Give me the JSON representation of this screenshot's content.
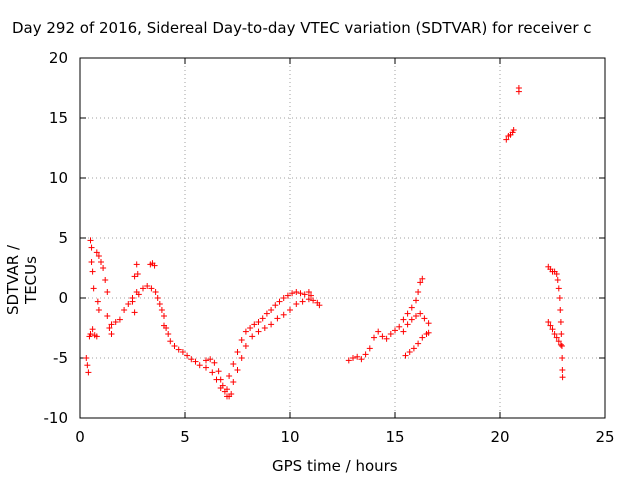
{
  "chart_data": {
    "type": "scatter",
    "title": "Day 292 of 2016, Sidereal Day-to-day VTEC variation (SDTVAR) for receiver c",
    "xlabel": "GPS time / hours",
    "ylabel": "SDTVAR / TECUs",
    "xlim": [
      0,
      25
    ],
    "ylim": [
      -10,
      20
    ],
    "xticks": [
      "0",
      "5",
      "10",
      "15",
      "20",
      "25"
    ],
    "yticks": [
      "20",
      "15",
      "10",
      "5",
      "0",
      "-5",
      "-10"
    ],
    "grid": true,
    "legend": "none",
    "series": [
      {
        "color": "#ff0000",
        "marker": "plus",
        "points": [
          [
            0.3,
            -5.0
          ],
          [
            0.35,
            -5.6
          ],
          [
            0.4,
            -6.2
          ],
          [
            0.45,
            -3.2
          ],
          [
            0.5,
            4.8
          ],
          [
            0.55,
            4.2
          ],
          [
            0.55,
            3.0
          ],
          [
            0.6,
            2.2
          ],
          [
            0.65,
            0.8
          ],
          [
            0.5,
            -3.0
          ],
          [
            0.6,
            -2.6
          ],
          [
            0.7,
            -3.1
          ],
          [
            0.8,
            -3.2
          ],
          [
            0.9,
            -1.0
          ],
          [
            0.85,
            -0.3
          ],
          [
            0.8,
            3.8
          ],
          [
            0.9,
            3.5
          ],
          [
            1.0,
            3.0
          ],
          [
            1.1,
            2.5
          ],
          [
            1.2,
            1.5
          ],
          [
            1.3,
            0.5
          ],
          [
            1.3,
            -1.5
          ],
          [
            1.4,
            -2.5
          ],
          [
            1.5,
            -3.0
          ],
          [
            1.5,
            -2.2
          ],
          [
            1.7,
            -2.0
          ],
          [
            1.9,
            -1.8
          ],
          [
            2.1,
            -1.0
          ],
          [
            2.3,
            -0.5
          ],
          [
            2.5,
            0.0
          ],
          [
            2.6,
            1.8
          ],
          [
            2.7,
            2.8
          ],
          [
            2.75,
            2.0
          ],
          [
            2.5,
            -0.3
          ],
          [
            2.6,
            -1.2
          ],
          [
            2.7,
            0.5
          ],
          [
            2.8,
            0.3
          ],
          [
            3.0,
            0.8
          ],
          [
            3.2,
            1.0
          ],
          [
            3.4,
            0.8
          ],
          [
            3.6,
            0.5
          ],
          [
            3.7,
            0.0
          ],
          [
            3.8,
            -0.5
          ],
          [
            3.9,
            -1.0
          ],
          [
            4.0,
            -1.5
          ],
          [
            4.1,
            -2.5
          ],
          [
            4.0,
            -2.3
          ],
          [
            3.35,
            2.8
          ],
          [
            3.45,
            2.9
          ],
          [
            3.55,
            2.7
          ],
          [
            4.2,
            -3.0
          ],
          [
            4.3,
            -3.6
          ],
          [
            4.5,
            -4.0
          ],
          [
            4.7,
            -4.3
          ],
          [
            4.9,
            -4.5
          ],
          [
            5.1,
            -4.8
          ],
          [
            5.3,
            -5.1
          ],
          [
            5.5,
            -5.3
          ],
          [
            5.7,
            -5.6
          ],
          [
            6.0,
            -5.2
          ],
          [
            6.2,
            -5.1
          ],
          [
            6.4,
            -5.4
          ],
          [
            6.6,
            -6.1
          ],
          [
            6.7,
            -6.8
          ],
          [
            6.8,
            -7.3
          ],
          [
            6.9,
            -7.8
          ],
          [
            7.0,
            -8.2
          ],
          [
            7.1,
            -8.2
          ],
          [
            7.2,
            -8.0
          ],
          [
            6.0,
            -5.8
          ],
          [
            6.3,
            -6.2
          ],
          [
            6.5,
            -6.8
          ],
          [
            6.7,
            -7.5
          ],
          [
            7.1,
            -6.5
          ],
          [
            7.3,
            -5.5
          ],
          [
            7.5,
            -4.5
          ],
          [
            7.7,
            -3.5
          ],
          [
            7.9,
            -2.8
          ],
          [
            8.1,
            -2.5
          ],
          [
            8.3,
            -2.2
          ],
          [
            8.5,
            -2.0
          ],
          [
            8.7,
            -1.7
          ],
          [
            8.9,
            -1.3
          ],
          [
            7.0,
            -7.6
          ],
          [
            7.3,
            -7.0
          ],
          [
            7.5,
            -6.0
          ],
          [
            7.7,
            -5.0
          ],
          [
            7.9,
            -4.0
          ],
          [
            8.2,
            -3.2
          ],
          [
            8.5,
            -2.8
          ],
          [
            8.8,
            -2.5
          ],
          [
            9.1,
            -2.2
          ],
          [
            9.4,
            -1.7
          ],
          [
            9.1,
            -1.0
          ],
          [
            9.3,
            -0.6
          ],
          [
            9.5,
            -0.3
          ],
          [
            9.7,
            0.0
          ],
          [
            9.9,
            0.2
          ],
          [
            10.1,
            0.4
          ],
          [
            10.3,
            0.5
          ],
          [
            10.5,
            0.4
          ],
          [
            10.7,
            0.3
          ],
          [
            10.9,
            0.5
          ],
          [
            11.0,
            0.2
          ],
          [
            11.1,
            -0.2
          ],
          [
            9.7,
            -1.4
          ],
          [
            10.0,
            -1.0
          ],
          [
            10.3,
            -0.5
          ],
          [
            10.6,
            -0.3
          ],
          [
            10.9,
            -0.1
          ],
          [
            11.3,
            -0.4
          ],
          [
            11.4,
            -0.6
          ],
          [
            12.8,
            -5.2
          ],
          [
            13.0,
            -5.0
          ],
          [
            13.2,
            -4.9
          ],
          [
            13.4,
            -5.1
          ],
          [
            13.6,
            -4.7
          ],
          [
            13.8,
            -4.2
          ],
          [
            14.0,
            -3.3
          ],
          [
            14.2,
            -2.8
          ],
          [
            14.4,
            -3.2
          ],
          [
            14.6,
            -3.4
          ],
          [
            14.8,
            -3.0
          ],
          [
            15.0,
            -2.7
          ],
          [
            15.2,
            -2.4
          ],
          [
            15.4,
            -1.8
          ],
          [
            15.6,
            -1.3
          ],
          [
            15.8,
            -0.8
          ],
          [
            16.0,
            -0.2
          ],
          [
            16.1,
            0.5
          ],
          [
            16.2,
            1.3
          ],
          [
            16.3,
            1.6
          ],
          [
            15.4,
            -2.8
          ],
          [
            15.6,
            -2.2
          ],
          [
            15.8,
            -1.8
          ],
          [
            16.0,
            -1.5
          ],
          [
            16.2,
            -1.3
          ],
          [
            16.4,
            -1.7
          ],
          [
            16.6,
            -2.1
          ],
          [
            15.5,
            -4.8
          ],
          [
            15.7,
            -4.5
          ],
          [
            15.9,
            -4.2
          ],
          [
            16.1,
            -3.8
          ],
          [
            16.3,
            -3.3
          ],
          [
            16.5,
            -3.0
          ],
          [
            16.6,
            -2.9
          ],
          [
            20.3,
            13.2
          ],
          [
            20.4,
            13.5
          ],
          [
            20.5,
            13.6
          ],
          [
            20.6,
            13.8
          ],
          [
            20.65,
            14.0
          ],
          [
            20.9,
            17.5
          ],
          [
            20.9,
            17.2
          ],
          [
            22.3,
            2.6
          ],
          [
            22.4,
            2.4
          ],
          [
            22.5,
            2.2
          ],
          [
            22.6,
            2.2
          ],
          [
            22.7,
            2.0
          ],
          [
            22.75,
            1.5
          ],
          [
            22.8,
            0.8
          ],
          [
            22.85,
            0.0
          ],
          [
            22.87,
            -1.0
          ],
          [
            22.9,
            -2.0
          ],
          [
            22.92,
            -3.0
          ],
          [
            22.95,
            -4.0
          ],
          [
            22.96,
            -5.0
          ],
          [
            22.97,
            -6.0
          ],
          [
            22.98,
            -6.6
          ],
          [
            22.3,
            -2.0
          ],
          [
            22.4,
            -2.3
          ],
          [
            22.5,
            -2.6
          ],
          [
            22.6,
            -3.0
          ],
          [
            22.7,
            -3.3
          ],
          [
            22.8,
            -3.6
          ],
          [
            22.9,
            -3.9
          ]
        ]
      }
    ]
  }
}
